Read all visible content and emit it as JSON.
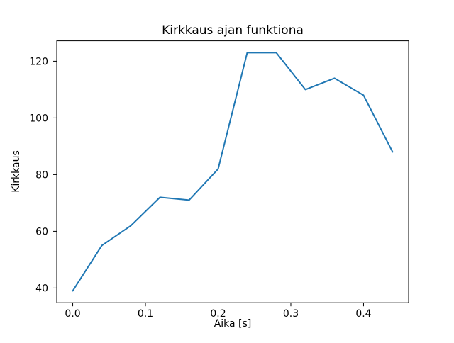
{
  "figure": {
    "background_color": "#ffffff"
  },
  "chart_data": {
    "type": "line",
    "title": "Kirkkaus ajan funktiona",
    "xlabel": "Aika [s]",
    "ylabel": "Kirkkaus",
    "x": [
      0.0,
      0.04,
      0.08,
      0.12,
      0.16,
      0.2,
      0.24,
      0.28,
      0.32,
      0.36,
      0.4,
      0.44
    ],
    "y": [
      39,
      55,
      62,
      72,
      71,
      82,
      123,
      123,
      110,
      114,
      108,
      88
    ],
    "xlim": [
      -0.022,
      0.462
    ],
    "ylim": [
      34.8,
      127.2
    ],
    "xticks": {
      "values": [
        0.0,
        0.1,
        0.2,
        0.3,
        0.4
      ],
      "labels": [
        "0.0",
        "0.1",
        "0.2",
        "0.3",
        "0.4"
      ]
    },
    "yticks": {
      "values": [
        40,
        60,
        80,
        100,
        120
      ],
      "labels": [
        "40",
        "60",
        "80",
        "100",
        "120"
      ]
    },
    "grid": false,
    "legend": "none",
    "line_color": "#1f77b4",
    "axis_color": "#000000"
  }
}
